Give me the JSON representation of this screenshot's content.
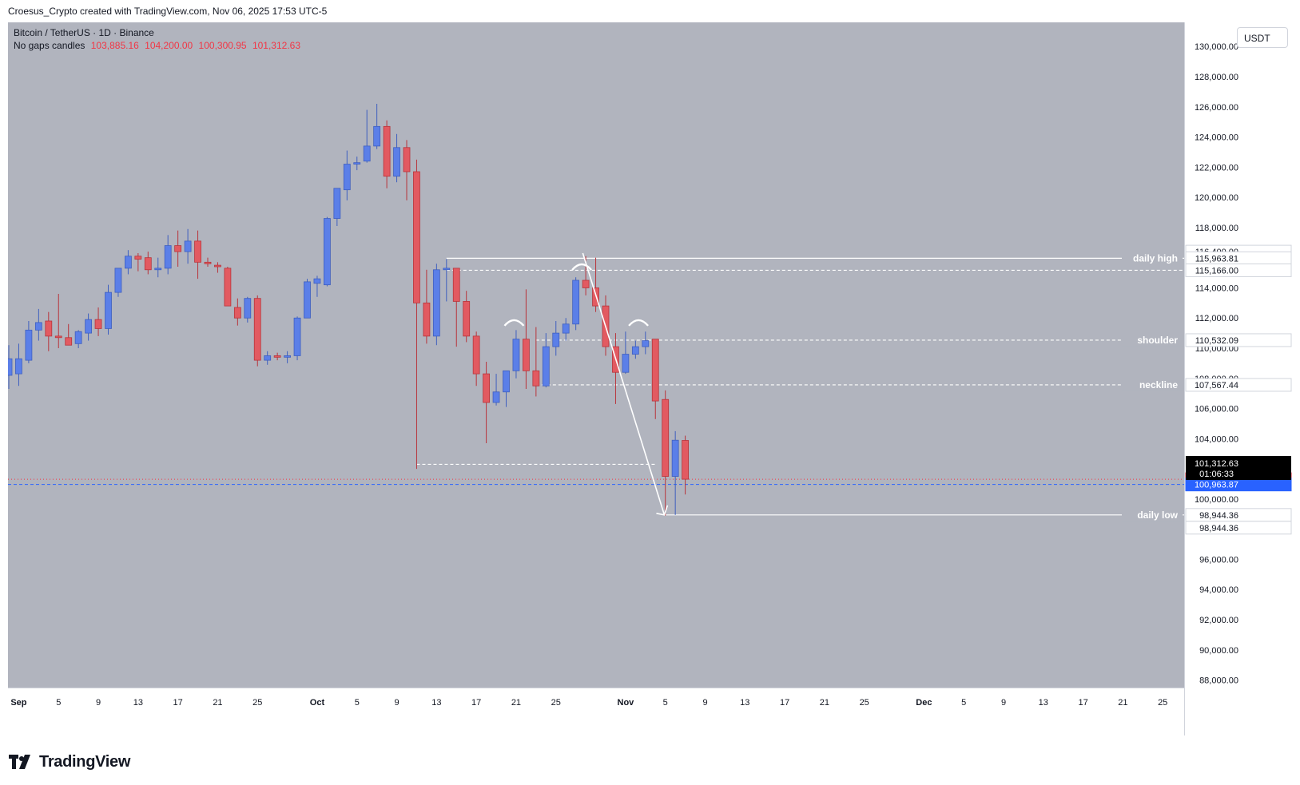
{
  "header": {
    "attribution": "Croesus_Crypto created with TradingView.com, Nov 06, 2025 17:53 UTC-5"
  },
  "legend": {
    "symbol": "Bitcoin / TetherUS · 1D · Binance",
    "candle_type": "No gaps candles",
    "ohlc": [
      "103,885.16",
      "104,200.00",
      "100,300.95",
      "101,312.63"
    ]
  },
  "currency": "USDT",
  "brand": {
    "name": "TradingView"
  },
  "colors": {
    "background": "#b1b4be",
    "up": "#5b7fe8",
    "down": "#e25a61",
    "wick": "#55575d",
    "annotation": "#ffffff",
    "price_red": "#f23645",
    "price_blue": "#2962ff"
  },
  "chart_data": {
    "type": "candlestick",
    "ylim": [
      87500,
      131600
    ],
    "y_ticks": [
      88000,
      90000,
      92000,
      94000,
      96000,
      98000,
      100000,
      102000,
      104000,
      106000,
      108000,
      110000,
      112000,
      114000,
      116000,
      118000,
      120000,
      122000,
      124000,
      126000,
      128000,
      130000
    ],
    "y_tick_labels": [
      "88,000.00",
      "90,000.00",
      "92,000.00",
      "94,000.00",
      "96,000.00",
      "98,000.00",
      "100,000.00",
      "102,000.00",
      "104,000.00",
      "106,000.00",
      "108,000.00",
      "110,000.00",
      "112,000.00",
      "114,000.00",
      "116,000.00",
      "118,000.00",
      "120,000.00",
      "122,000.00",
      "124,000.00",
      "126,000.00",
      "128,000.00",
      "130,000.00"
    ],
    "x_labels": [
      {
        "i": 1,
        "label": "Sep"
      },
      {
        "i": 5,
        "label": "5"
      },
      {
        "i": 9,
        "label": "9"
      },
      {
        "i": 13,
        "label": "13"
      },
      {
        "i": 17,
        "label": "17"
      },
      {
        "i": 21,
        "label": "21"
      },
      {
        "i": 25,
        "label": "25"
      },
      {
        "i": 31,
        "label": "Oct"
      },
      {
        "i": 35,
        "label": "5"
      },
      {
        "i": 39,
        "label": "9"
      },
      {
        "i": 43,
        "label": "13"
      },
      {
        "i": 47,
        "label": "17"
      },
      {
        "i": 51,
        "label": "21"
      },
      {
        "i": 55,
        "label": "25"
      },
      {
        "i": 62,
        "label": "Nov"
      },
      {
        "i": 66,
        "label": "5"
      },
      {
        "i": 70,
        "label": "9"
      },
      {
        "i": 74,
        "label": "13"
      },
      {
        "i": 78,
        "label": "17"
      },
      {
        "i": 82,
        "label": "21"
      },
      {
        "i": 86,
        "label": "25"
      },
      {
        "i": 92,
        "label": "Dec"
      },
      {
        "i": 96,
        "label": "5"
      },
      {
        "i": 100,
        "label": "9"
      },
      {
        "i": 104,
        "label": "13"
      },
      {
        "i": 108,
        "label": "17"
      },
      {
        "i": 112,
        "label": "21"
      },
      {
        "i": 116,
        "label": "25"
      }
    ],
    "candles": [
      {
        "o": 108200,
        "h": 110200,
        "l": 107300,
        "c": 109300
      },
      {
        "o": 108300,
        "h": 110300,
        "l": 107500,
        "c": 109300
      },
      {
        "o": 109200,
        "h": 111800,
        "l": 109000,
        "c": 111200
      },
      {
        "o": 111200,
        "h": 112600,
        "l": 110500,
        "c": 111700
      },
      {
        "o": 111800,
        "h": 112400,
        "l": 109800,
        "c": 110800
      },
      {
        "o": 110800,
        "h": 113600,
        "l": 110000,
        "c": 110700
      },
      {
        "o": 110700,
        "h": 111600,
        "l": 110200,
        "c": 110200
      },
      {
        "o": 110300,
        "h": 111200,
        "l": 110000,
        "c": 111100
      },
      {
        "o": 111000,
        "h": 112300,
        "l": 110500,
        "c": 111900
      },
      {
        "o": 111900,
        "h": 112700,
        "l": 110800,
        "c": 111300
      },
      {
        "o": 111300,
        "h": 114200,
        "l": 110900,
        "c": 113700
      },
      {
        "o": 113700,
        "h": 115000,
        "l": 113400,
        "c": 115300
      },
      {
        "o": 115300,
        "h": 116500,
        "l": 114900,
        "c": 116100
      },
      {
        "o": 116100,
        "h": 116300,
        "l": 115100,
        "c": 115900
      },
      {
        "o": 116000,
        "h": 116400,
        "l": 114900,
        "c": 115200
      },
      {
        "o": 115200,
        "h": 116000,
        "l": 114700,
        "c": 115300
      },
      {
        "o": 115300,
        "h": 117500,
        "l": 114900,
        "c": 116800
      },
      {
        "o": 116800,
        "h": 117800,
        "l": 115400,
        "c": 116400
      },
      {
        "o": 116400,
        "h": 117900,
        "l": 115600,
        "c": 117100
      },
      {
        "o": 117100,
        "h": 117800,
        "l": 114600,
        "c": 115700
      },
      {
        "o": 115700,
        "h": 116000,
        "l": 115400,
        "c": 115600
      },
      {
        "o": 115500,
        "h": 115700,
        "l": 115000,
        "c": 115400
      },
      {
        "o": 115300,
        "h": 115400,
        "l": 112800,
        "c": 112800
      },
      {
        "o": 112700,
        "h": 113300,
        "l": 111500,
        "c": 112000
      },
      {
        "o": 112000,
        "h": 113400,
        "l": 111700,
        "c": 113300
      },
      {
        "o": 113300,
        "h": 113500,
        "l": 108800,
        "c": 109200
      },
      {
        "o": 109200,
        "h": 109800,
        "l": 108900,
        "c": 109500
      },
      {
        "o": 109500,
        "h": 109700,
        "l": 109200,
        "c": 109400
      },
      {
        "o": 109400,
        "h": 109800,
        "l": 109000,
        "c": 109500
      },
      {
        "o": 109500,
        "h": 112100,
        "l": 109200,
        "c": 112000
      },
      {
        "o": 112000,
        "h": 114600,
        "l": 112000,
        "c": 114400
      },
      {
        "o": 114300,
        "h": 114800,
        "l": 113400,
        "c": 114600
      },
      {
        "o": 114200,
        "h": 118700,
        "l": 114100,
        "c": 118600
      },
      {
        "o": 118600,
        "h": 120600,
        "l": 118100,
        "c": 120600
      },
      {
        "o": 120500,
        "h": 123100,
        "l": 119800,
        "c": 122200
      },
      {
        "o": 122200,
        "h": 122700,
        "l": 121800,
        "c": 122300
      },
      {
        "o": 122400,
        "h": 125800,
        "l": 122300,
        "c": 123400
      },
      {
        "o": 123400,
        "h": 126200,
        "l": 123200,
        "c": 124700
      },
      {
        "o": 124700,
        "h": 125100,
        "l": 120600,
        "c": 121400
      },
      {
        "o": 121400,
        "h": 124200,
        "l": 121000,
        "c": 123300
      },
      {
        "o": 123300,
        "h": 123800,
        "l": 119800,
        "c": 121700
      },
      {
        "o": 121700,
        "h": 122500,
        "l": 102000,
        "c": 113000
      },
      {
        "o": 113000,
        "h": 115200,
        "l": 110300,
        "c": 110800
      },
      {
        "o": 110800,
        "h": 115600,
        "l": 110200,
        "c": 115200
      },
      {
        "o": 115200,
        "h": 115900,
        "l": 113100,
        "c": 115300
      },
      {
        "o": 115300,
        "h": 115300,
        "l": 110100,
        "c": 113100
      },
      {
        "o": 113100,
        "h": 113800,
        "l": 110400,
        "c": 110800
      },
      {
        "o": 110800,
        "h": 111100,
        "l": 107500,
        "c": 108300
      },
      {
        "o": 108300,
        "h": 109100,
        "l": 103700,
        "c": 106400
      },
      {
        "o": 106400,
        "h": 108300,
        "l": 106200,
        "c": 107100
      },
      {
        "o": 107100,
        "h": 108400,
        "l": 106100,
        "c": 108500
      },
      {
        "o": 108500,
        "h": 111200,
        "l": 108000,
        "c": 110600
      },
      {
        "o": 110600,
        "h": 113900,
        "l": 107300,
        "c": 108500
      },
      {
        "o": 108500,
        "h": 111400,
        "l": 106800,
        "c": 107500
      },
      {
        "o": 107500,
        "h": 111000,
        "l": 107400,
        "c": 110100
      },
      {
        "o": 110100,
        "h": 111800,
        "l": 109500,
        "c": 111000
      },
      {
        "o": 111000,
        "h": 112000,
        "l": 110500,
        "c": 111600
      },
      {
        "o": 111600,
        "h": 114700,
        "l": 111200,
        "c": 114500
      },
      {
        "o": 114500,
        "h": 116100,
        "l": 113500,
        "c": 114000
      },
      {
        "o": 114000,
        "h": 116000,
        "l": 112400,
        "c": 112800
      },
      {
        "o": 112800,
        "h": 113500,
        "l": 109500,
        "c": 110100
      },
      {
        "o": 110100,
        "h": 111000,
        "l": 106300,
        "c": 108400
      },
      {
        "o": 108400,
        "h": 111100,
        "l": 108300,
        "c": 109600
      },
      {
        "o": 109600,
        "h": 110500,
        "l": 109300,
        "c": 110100
      },
      {
        "o": 110100,
        "h": 111100,
        "l": 109600,
        "c": 110500
      },
      {
        "o": 110600,
        "h": 110600,
        "l": 105300,
        "c": 106500
      },
      {
        "o": 106600,
        "h": 107200,
        "l": 98900,
        "c": 101500
      },
      {
        "o": 101500,
        "h": 104500,
        "l": 98944,
        "c": 103900
      },
      {
        "o": 103885,
        "h": 104200,
        "l": 100301,
        "c": 101313
      }
    ],
    "price_lines": [
      {
        "price": 101312.63,
        "color": "#f23645",
        "style": "dotted"
      },
      {
        "price": 100963.87,
        "color": "#2962ff",
        "style": "dashed"
      }
    ],
    "levels": [
      {
        "name": "daily high",
        "price": 115963.81,
        "from": 44,
        "style": "solid"
      },
      {
        "name": "",
        "price": 115166.0,
        "from": 44,
        "style": "dashed"
      },
      {
        "name": "shoulder",
        "price": 110532.09,
        "from": 53,
        "style": "dashed"
      },
      {
        "name": "neckline",
        "price": 107567.44,
        "from": 53,
        "style": "dashed"
      },
      {
        "name": "",
        "price": 102300.0,
        "from": 41,
        "to": 65,
        "style": "dashed"
      },
      {
        "name": "daily low",
        "price": 98944.36,
        "from": 66,
        "style": "solid"
      }
    ],
    "axis_price_labels": [
      {
        "text": "116,400.00",
        "price": 116400,
        "bg": "#ffffff",
        "fg": "#131722"
      },
      {
        "text": "115,963.81",
        "price": 115963.81,
        "bg": "#ffffff",
        "fg": "#131722"
      },
      {
        "text": "115,166.00",
        "price": 115166.0,
        "bg": "#ffffff",
        "fg": "#131722"
      },
      {
        "text": "110,532.09",
        "price": 110532.09,
        "bg": "#ffffff",
        "fg": "#131722"
      },
      {
        "text": "107,567.44",
        "price": 107567.44,
        "bg": "#ffffff",
        "fg": "#131722"
      },
      {
        "text": "98,944.36",
        "price": 98944.36,
        "bg": "#ffffff",
        "fg": "#131722"
      },
      {
        "text": "98,944.36",
        "price": 98100,
        "bg": "#ffffff",
        "fg": "#131722"
      },
      {
        "text": "101,312.63",
        "price": 101312.63,
        "bg": "#f23645",
        "fg": "#ffffff"
      },
      {
        "text": "100,963.87",
        "price": 100963.87,
        "bg": "#2962ff",
        "fg": "#ffffff"
      }
    ],
    "last_price_tag": {
      "price": "101,312.63",
      "countdown": "01:06:33"
    },
    "arrow": {
      "from_index": 57.7,
      "from_price": 116300,
      "to_index": 65.9,
      "to_price": 98944.36
    },
    "arcs": [
      {
        "index": 50.8,
        "price": 111700
      },
      {
        "index": 57.6,
        "price": 115400
      },
      {
        "index": 63.3,
        "price": 111700
      }
    ]
  }
}
